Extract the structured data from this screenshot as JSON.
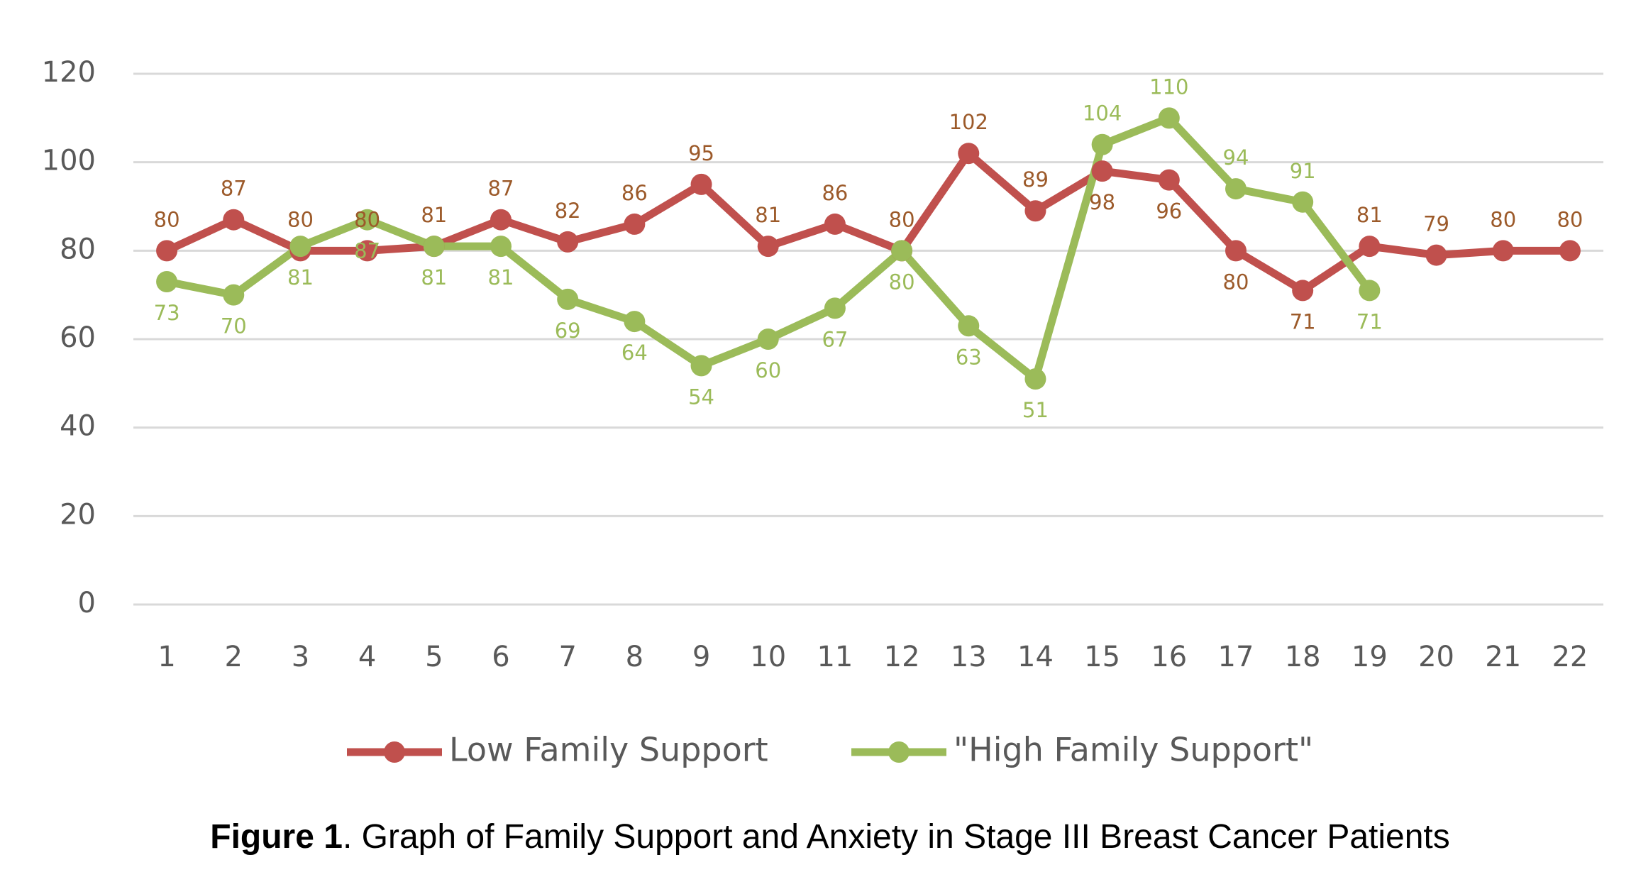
{
  "chart_data": {
    "type": "line",
    "categories": [
      "1",
      "2",
      "3",
      "4",
      "5",
      "6",
      "7",
      "8",
      "9",
      "10",
      "11",
      "12",
      "13",
      "14",
      "15",
      "16",
      "17",
      "18",
      "19",
      "20",
      "21",
      "22"
    ],
    "series": [
      {
        "name": "Low Family Support",
        "color": "#c0504d",
        "label_color": "#9c5a2a",
        "values": [
          80,
          87,
          80,
          80,
          81,
          87,
          82,
          86,
          95,
          81,
          86,
          80,
          102,
          89,
          98,
          96,
          80,
          71,
          81,
          79,
          80,
          80
        ]
      },
      {
        "name": "\"High Family Support\"",
        "color": "#9bbb59",
        "label_color": "#9bbb59",
        "values": [
          73,
          70,
          81,
          87,
          81,
          81,
          69,
          64,
          54,
          60,
          67,
          80,
          63,
          51,
          104,
          110,
          94,
          91,
          71,
          null,
          null,
          null
        ]
      }
    ],
    "ylim": [
      0,
      120
    ],
    "yticks": [
      0,
      20,
      40,
      60,
      80,
      100,
      120
    ],
    "grid": true,
    "legend": "bottom",
    "caption_label": "Figure 1",
    "caption": ". Graph of Family Support and Anxiety in Stage III Breast Cancer Patients"
  }
}
